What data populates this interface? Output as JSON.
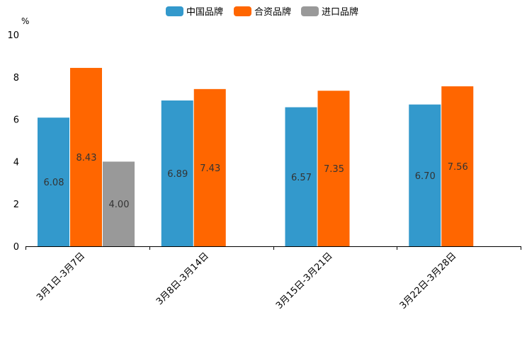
{
  "chart_data": {
    "type": "bar",
    "unit": "%",
    "ylim": [
      0,
      10
    ],
    "yticks": [
      "0",
      "2",
      "4",
      "6",
      "8",
      "10"
    ],
    "categories": [
      "3月1日-3月7日",
      "3月8日-3月14日",
      "3月15日-3月21日",
      "3月22日-3月28日"
    ],
    "series": [
      {
        "name": "中国品牌",
        "color": "#3399cc",
        "values": [
          6.08,
          6.89,
          6.57,
          6.7
        ],
        "labels": [
          "6.08",
          "6.89",
          "6.57",
          "6.70"
        ]
      },
      {
        "name": "合资品牌",
        "color": "#ff6600",
        "values": [
          8.43,
          7.43,
          7.35,
          7.56
        ],
        "labels": [
          "8.43",
          "7.43",
          "7.35",
          "7.56"
        ]
      },
      {
        "name": "进口品牌",
        "color": "#999999",
        "values": [
          4.0,
          null,
          null,
          null
        ],
        "labels": [
          "4.00",
          null,
          null,
          null
        ]
      }
    ],
    "legend_position": "top-center",
    "grid": false
  }
}
